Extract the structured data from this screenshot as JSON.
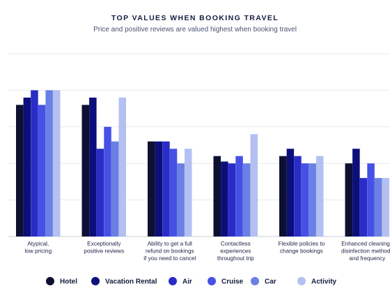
{
  "title": "TOP VALUES WHEN BOOKING TRAVEL",
  "subtitle": "Price and positive reviews are valued highest when booking travel",
  "chart_data": {
    "type": "bar",
    "categories": [
      [
        "Atypical,",
        "low pricing"
      ],
      [
        "Exceptionally",
        "positive reviews"
      ],
      [
        "Ability to get a full",
        "refund on bookings",
        "if you need to cancel"
      ],
      [
        "Contactless",
        "experiences",
        "throughout trip"
      ],
      [
        "Flexible policies to",
        "change bookings"
      ],
      [
        "Enhanced cleaning /",
        "disinfection methods",
        "and frequency"
      ]
    ],
    "series": [
      {
        "name": "Hotel",
        "color": "#0d1031",
        "values": [
          36,
          36,
          26,
          22,
          22,
          20
        ]
      },
      {
        "name": "Vacation Rental",
        "color": "#0c0f7a",
        "values": [
          38,
          38,
          26,
          20.5,
          24,
          24
        ]
      },
      {
        "name": "Air",
        "color": "#2a2cc7",
        "values": [
          40,
          24,
          26,
          20,
          22,
          16
        ]
      },
      {
        "name": "Cruise",
        "color": "#4650e4",
        "values": [
          36,
          30,
          24,
          22,
          20,
          20
        ]
      },
      {
        "name": "Car",
        "color": "#6b80e4",
        "values": [
          40,
          26,
          20,
          20,
          20,
          16
        ]
      },
      {
        "name": "Activity",
        "color": "#b4c0f2",
        "values": [
          40,
          38,
          24,
          28,
          22,
          16
        ]
      }
    ],
    "ylim": [
      0,
      50
    ],
    "grid": true,
    "legend": "bottom"
  }
}
